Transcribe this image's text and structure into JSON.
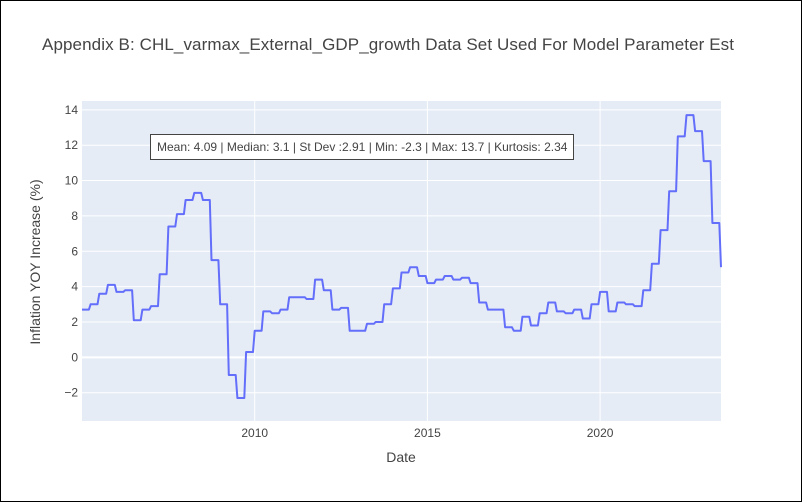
{
  "chart_data": {
    "type": "line",
    "title": "Appendix B: CHL_varmax_External_GDP_growth Data Set Used For Model Parameter Est",
    "xlabel": "Date",
    "ylabel": "Inflation YOY Increase (%)",
    "xlim": [
      2005.0,
      2023.5
    ],
    "ylim": [
      -3.6,
      14.5
    ],
    "x_ticks": [
      2010,
      2015,
      2020
    ],
    "y_ticks": [
      -2,
      0,
      2,
      4,
      6,
      8,
      10,
      12,
      14
    ],
    "y_tick_labels": [
      "−2",
      "0",
      "2",
      "4",
      "6",
      "8",
      "10",
      "12",
      "14"
    ],
    "grid": true,
    "legend": "none",
    "annotation": "Mean: 4.09 | Median: 3.1 | St Dev :2.91 | Min: -2.3 | Max: 13.7 | Kurtosis: 2.34",
    "series": [
      {
        "color": "#636efa",
        "points": [
          [
            2005.0,
            2.7
          ],
          [
            2005.2,
            2.7
          ],
          [
            2005.25,
            3.0
          ],
          [
            2005.45,
            3.0
          ],
          [
            2005.5,
            3.6
          ],
          [
            2005.7,
            3.6
          ],
          [
            2005.75,
            4.1
          ],
          [
            2005.95,
            4.1
          ],
          [
            2006.0,
            3.7
          ],
          [
            2006.2,
            3.7
          ],
          [
            2006.25,
            3.8
          ],
          [
            2006.45,
            3.8
          ],
          [
            2006.5,
            2.1
          ],
          [
            2006.7,
            2.1
          ],
          [
            2006.75,
            2.7
          ],
          [
            2006.95,
            2.7
          ],
          [
            2007.0,
            2.9
          ],
          [
            2007.2,
            2.9
          ],
          [
            2007.25,
            4.7
          ],
          [
            2007.45,
            4.7
          ],
          [
            2007.5,
            7.4
          ],
          [
            2007.7,
            7.4
          ],
          [
            2007.75,
            8.1
          ],
          [
            2007.95,
            8.1
          ],
          [
            2008.0,
            8.9
          ],
          [
            2008.2,
            8.9
          ],
          [
            2008.25,
            9.3
          ],
          [
            2008.45,
            9.3
          ],
          [
            2008.5,
            8.9
          ],
          [
            2008.7,
            8.9
          ],
          [
            2008.75,
            5.5
          ],
          [
            2008.95,
            5.5
          ],
          [
            2009.0,
            3.0
          ],
          [
            2009.2,
            3.0
          ],
          [
            2009.25,
            -1.0
          ],
          [
            2009.45,
            -1.0
          ],
          [
            2009.5,
            -2.3
          ],
          [
            2009.7,
            -2.3
          ],
          [
            2009.75,
            0.3
          ],
          [
            2009.95,
            0.3
          ],
          [
            2010.0,
            1.5
          ],
          [
            2010.2,
            1.5
          ],
          [
            2010.25,
            2.6
          ],
          [
            2010.45,
            2.6
          ],
          [
            2010.5,
            2.5
          ],
          [
            2010.7,
            2.5
          ],
          [
            2010.75,
            2.7
          ],
          [
            2010.95,
            2.7
          ],
          [
            2011.0,
            3.4
          ],
          [
            2011.45,
            3.4
          ],
          [
            2011.5,
            3.3
          ],
          [
            2011.7,
            3.3
          ],
          [
            2011.75,
            4.4
          ],
          [
            2011.95,
            4.4
          ],
          [
            2012.0,
            3.8
          ],
          [
            2012.2,
            3.8
          ],
          [
            2012.25,
            2.7
          ],
          [
            2012.45,
            2.7
          ],
          [
            2012.5,
            2.8
          ],
          [
            2012.7,
            2.8
          ],
          [
            2012.75,
            1.5
          ],
          [
            2013.2,
            1.5
          ],
          [
            2013.25,
            1.9
          ],
          [
            2013.45,
            1.9
          ],
          [
            2013.5,
            2.0
          ],
          [
            2013.7,
            2.0
          ],
          [
            2013.75,
            3.0
          ],
          [
            2013.95,
            3.0
          ],
          [
            2014.0,
            3.9
          ],
          [
            2014.2,
            3.9
          ],
          [
            2014.25,
            4.8
          ],
          [
            2014.45,
            4.8
          ],
          [
            2014.5,
            5.1
          ],
          [
            2014.7,
            5.1
          ],
          [
            2014.75,
            4.6
          ],
          [
            2014.95,
            4.6
          ],
          [
            2015.0,
            4.2
          ],
          [
            2015.2,
            4.2
          ],
          [
            2015.25,
            4.4
          ],
          [
            2015.45,
            4.4
          ],
          [
            2015.5,
            4.6
          ],
          [
            2015.7,
            4.6
          ],
          [
            2015.75,
            4.4
          ],
          [
            2015.95,
            4.4
          ],
          [
            2016.0,
            4.5
          ],
          [
            2016.2,
            4.5
          ],
          [
            2016.25,
            4.2
          ],
          [
            2016.45,
            4.2
          ],
          [
            2016.5,
            3.1
          ],
          [
            2016.7,
            3.1
          ],
          [
            2016.75,
            2.7
          ],
          [
            2017.2,
            2.7
          ],
          [
            2017.25,
            1.7
          ],
          [
            2017.45,
            1.7
          ],
          [
            2017.5,
            1.5
          ],
          [
            2017.7,
            1.5
          ],
          [
            2017.75,
            2.3
          ],
          [
            2017.95,
            2.3
          ],
          [
            2018.0,
            1.8
          ],
          [
            2018.2,
            1.8
          ],
          [
            2018.25,
            2.5
          ],
          [
            2018.45,
            2.5
          ],
          [
            2018.5,
            3.1
          ],
          [
            2018.7,
            3.1
          ],
          [
            2018.75,
            2.6
          ],
          [
            2018.95,
            2.6
          ],
          [
            2019.0,
            2.5
          ],
          [
            2019.2,
            2.5
          ],
          [
            2019.25,
            2.7
          ],
          [
            2019.45,
            2.7
          ],
          [
            2019.5,
            2.2
          ],
          [
            2019.7,
            2.2
          ],
          [
            2019.75,
            3.0
          ],
          [
            2019.95,
            3.0
          ],
          [
            2020.0,
            3.7
          ],
          [
            2020.2,
            3.7
          ],
          [
            2020.25,
            2.6
          ],
          [
            2020.45,
            2.6
          ],
          [
            2020.5,
            3.1
          ],
          [
            2020.7,
            3.1
          ],
          [
            2020.75,
            3.0
          ],
          [
            2020.95,
            3.0
          ],
          [
            2021.0,
            2.9
          ],
          [
            2021.2,
            2.9
          ],
          [
            2021.25,
            3.8
          ],
          [
            2021.45,
            3.8
          ],
          [
            2021.5,
            5.3
          ],
          [
            2021.7,
            5.3
          ],
          [
            2021.75,
            7.2
          ],
          [
            2021.95,
            7.2
          ],
          [
            2022.0,
            9.4
          ],
          [
            2022.2,
            9.4
          ],
          [
            2022.25,
            12.5
          ],
          [
            2022.45,
            12.5
          ],
          [
            2022.5,
            13.7
          ],
          [
            2022.7,
            13.7
          ],
          [
            2022.75,
            12.8
          ],
          [
            2022.95,
            12.8
          ],
          [
            2023.0,
            11.1
          ],
          [
            2023.2,
            11.1
          ],
          [
            2023.25,
            7.6
          ],
          [
            2023.45,
            7.6
          ],
          [
            2023.5,
            5.1
          ]
        ]
      }
    ]
  }
}
